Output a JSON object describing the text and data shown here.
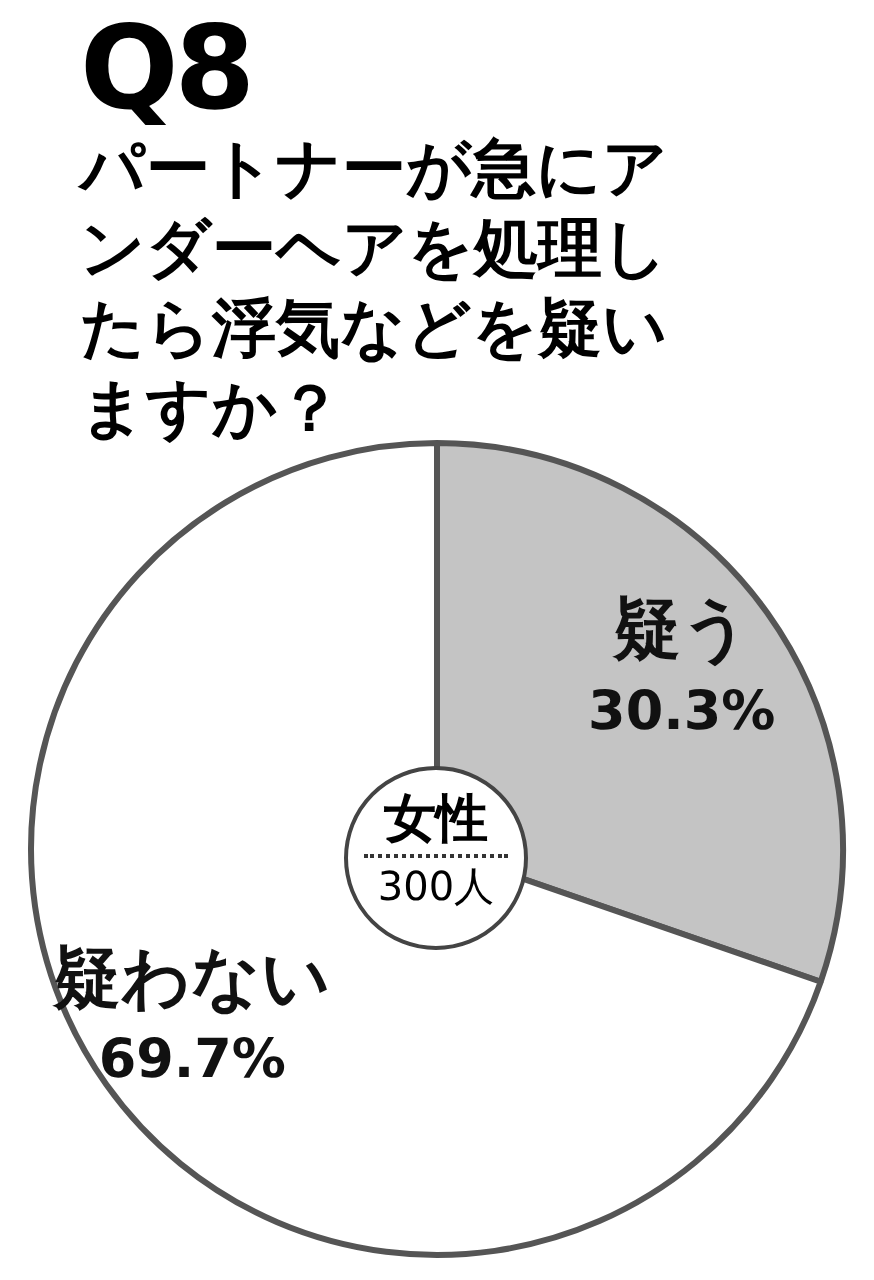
{
  "chart_data": {
    "type": "pie",
    "title": "Q8",
    "subtitle": "パートナーが急にアンダーヘアを処理したら浮気などを疑いますか？",
    "categories": [
      "疑う",
      "疑わない"
    ],
    "values": [
      30.3,
      69.7
    ],
    "value_labels": [
      "30.3%",
      "69.7%"
    ],
    "colors": [
      "#c4c4c4",
      "#ffffff"
    ],
    "annotations": [
      "女性",
      "300人"
    ],
    "legend": false
  }
}
